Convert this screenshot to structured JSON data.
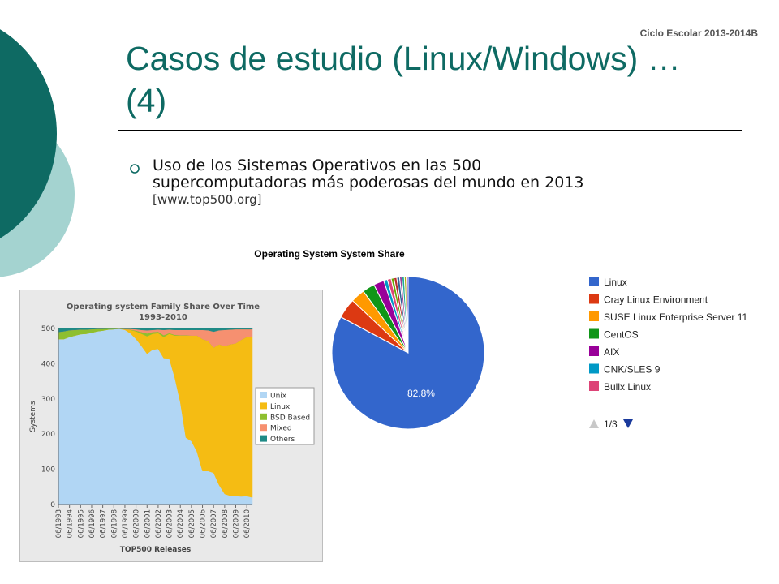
{
  "slide": {
    "ciclo": "Ciclo Escolar 2013-2014B",
    "title_line1": "Casos de estudio (Linux/Windows) …",
    "title_line2": "(4)",
    "bullet_line1": "Uso de los Sistemas Operativos en las 500",
    "bullet_line2": "supercomputadoras más poderosas del mundo en 2013",
    "bullet_source": "[www.top500.org]"
  },
  "theme": {
    "teal_dark": "#0e6a63",
    "teal_light": "#a4d3d0"
  },
  "chart_data": [
    {
      "type": "area",
      "stacked": true,
      "title": "Operating system Family Share Over Time",
      "subtitle": "1993-2010",
      "xlabel": "TOP500 Releases",
      "ylabel": "Systems",
      "ylim": [
        0,
        500
      ],
      "yticks": [
        0,
        100,
        200,
        300,
        400,
        500
      ],
      "grid": true,
      "legend_position": "right",
      "x_tick_labels": [
        "06/1993",
        "06/1994",
        "06/1995",
        "06/1996",
        "06/1997",
        "06/1998",
        "06/1999",
        "06/2000",
        "06/2001",
        "06/2002",
        "06/2003",
        "06/2004",
        "06/2005",
        "06/2006",
        "06/2007",
        "06/2008",
        "06/2009",
        "06/2010"
      ],
      "x": [
        "06/1993",
        "11/1993",
        "06/1994",
        "11/1994",
        "06/1995",
        "11/1995",
        "06/1996",
        "11/1996",
        "06/1997",
        "11/1997",
        "06/1998",
        "11/1998",
        "06/1999",
        "11/1999",
        "06/2000",
        "11/2000",
        "06/2001",
        "11/2001",
        "06/2002",
        "11/2002",
        "06/2003",
        "11/2003",
        "06/2004",
        "11/2004",
        "06/2005",
        "11/2005",
        "06/2006",
        "11/2006",
        "06/2007",
        "11/2007",
        "06/2008",
        "11/2008",
        "06/2009",
        "11/2009",
        "06/2010",
        "11/2010"
      ],
      "series": [
        {
          "name": "Unix",
          "color": "#b1d6f4",
          "values": [
            470,
            470,
            476,
            480,
            484,
            485,
            488,
            492,
            494,
            497,
            498,
            499,
            496,
            486,
            470,
            450,
            428,
            440,
            442,
            416,
            415,
            360,
            290,
            190,
            180,
            150,
            95,
            95,
            90,
            55,
            30,
            25,
            24,
            23,
            24,
            20
          ]
        },
        {
          "name": "Linux",
          "color": "#f5bc13",
          "values": [
            0,
            0,
            0,
            0,
            0,
            0,
            0,
            0,
            0,
            0,
            0,
            1,
            2,
            10,
            22,
            35,
            50,
            45,
            45,
            60,
            70,
            120,
            190,
            290,
            300,
            330,
            375,
            370,
            356,
            400,
            420,
            430,
            434,
            445,
            452,
            456
          ]
        },
        {
          "name": "BSD Based",
          "color": "#8ebf2f",
          "values": [
            20,
            22,
            19,
            16,
            13,
            12,
            10,
            7,
            5,
            3,
            2,
            0,
            0,
            1,
            2,
            5,
            8,
            5,
            4,
            5,
            2,
            2,
            1,
            1,
            0,
            0,
            0,
            0,
            0,
            0,
            0,
            0,
            0,
            0,
            0,
            0
          ]
        },
        {
          "name": "Mixed",
          "color": "#f69070",
          "values": [
            0,
            0,
            0,
            0,
            0,
            0,
            0,
            0,
            0,
            0,
            0,
            0,
            1,
            2,
            4,
            6,
            9,
            6,
            6,
            15,
            10,
            14,
            15,
            15,
            16,
            16,
            26,
            30,
            45,
            40,
            46,
            42,
            40,
            30,
            22,
            22
          ]
        },
        {
          "name": "Others",
          "color": "#1f8a86",
          "values": [
            10,
            8,
            5,
            4,
            3,
            3,
            2,
            1,
            1,
            0,
            0,
            0,
            1,
            1,
            2,
            4,
            5,
            4,
            3,
            4,
            3,
            4,
            4,
            4,
            4,
            4,
            4,
            5,
            9,
            5,
            4,
            3,
            2,
            2,
            2,
            2
          ]
        }
      ]
    },
    {
      "type": "pie",
      "title": "Operating System System Share",
      "legend_position": "right",
      "legend_page": "1/3",
      "visible_data_labels": [
        "82.8%"
      ],
      "slices": [
        {
          "name": "Linux",
          "value": 82.8,
          "label": "82.8%",
          "color": "#3366cc"
        },
        {
          "name": "Cray Linux Environment",
          "value": 4.2,
          "color": "#dc3912"
        },
        {
          "name": "SUSE Linux Enterprise Server 11",
          "value": 3.0,
          "color": "#ff9900"
        },
        {
          "name": "CentOS",
          "value": 2.6,
          "color": "#109618"
        },
        {
          "name": "AIX",
          "value": 2.2,
          "color": "#990099"
        },
        {
          "name": "CNK/SLES 9",
          "value": 0.8,
          "color": "#0099c6"
        },
        {
          "name": "Bullx Linux",
          "value": 0.8,
          "color": "#dd4477"
        },
        {
          "name": "",
          "value": 0.6,
          "color": "#66aa00"
        },
        {
          "name": "",
          "value": 0.6,
          "color": "#b82e2e"
        },
        {
          "name": "",
          "value": 0.6,
          "color": "#316395"
        },
        {
          "name": "",
          "value": 0.5,
          "color": "#994499"
        },
        {
          "name": "",
          "value": 0.5,
          "color": "#22aa99"
        },
        {
          "name": "",
          "value": 0.4,
          "color": "#aaaa11"
        },
        {
          "name": "",
          "value": 0.4,
          "color": "#6633cc"
        }
      ]
    }
  ]
}
